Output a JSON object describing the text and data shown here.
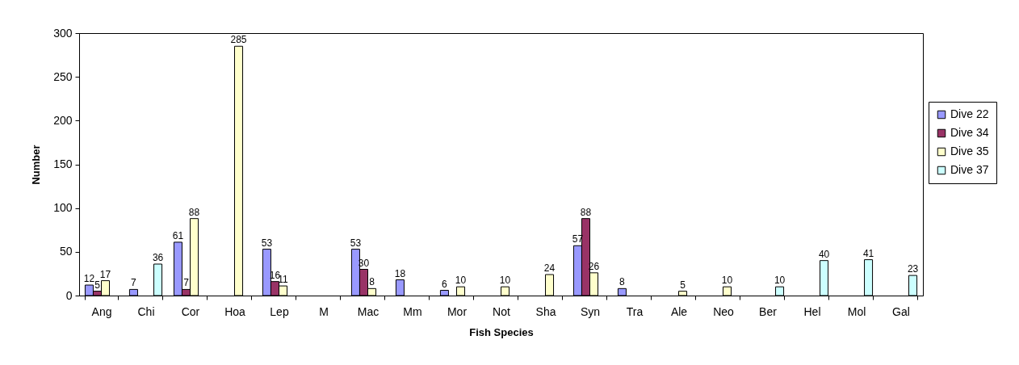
{
  "chart_data": {
    "type": "bar",
    "xlabel": "Fish Species",
    "ylabel": "Number",
    "categories": [
      "Ang",
      "Chi",
      "Cor",
      "Hoa",
      "Lep",
      "M",
      "Mac",
      "Mm",
      "Mor",
      "Not",
      "Sha",
      "Syn",
      "Tra",
      "Ale",
      "Neo",
      "Ber",
      "Hel",
      "Mol",
      "Gal"
    ],
    "series": [
      {
        "name": "Dive 22",
        "color": "#9999ff",
        "values": [
          12,
          7,
          61,
          null,
          53,
          null,
          53,
          18,
          6,
          null,
          null,
          57,
          8,
          null,
          null,
          null,
          null,
          null,
          null
        ]
      },
      {
        "name": "Dive 34",
        "color": "#993366",
        "values": [
          5,
          null,
          7,
          null,
          16,
          null,
          30,
          null,
          null,
          null,
          null,
          88,
          null,
          null,
          null,
          null,
          null,
          null,
          null
        ]
      },
      {
        "name": "Dive 35",
        "color": "#ffffcc",
        "values": [
          17,
          null,
          88,
          285,
          11,
          null,
          8,
          null,
          10,
          10,
          24,
          26,
          null,
          5,
          10,
          null,
          null,
          null,
          null
        ]
      },
      {
        "name": "Dive 37",
        "color": "#ccffff",
        "values": [
          null,
          36,
          null,
          null,
          null,
          null,
          null,
          null,
          null,
          null,
          null,
          null,
          null,
          null,
          null,
          10,
          40,
          41,
          23
        ]
      }
    ],
    "ylim": [
      0,
      300
    ],
    "yticks": [
      0,
      50,
      100,
      150,
      200,
      250,
      300
    ],
    "legend": "right",
    "data_labels": true
  }
}
